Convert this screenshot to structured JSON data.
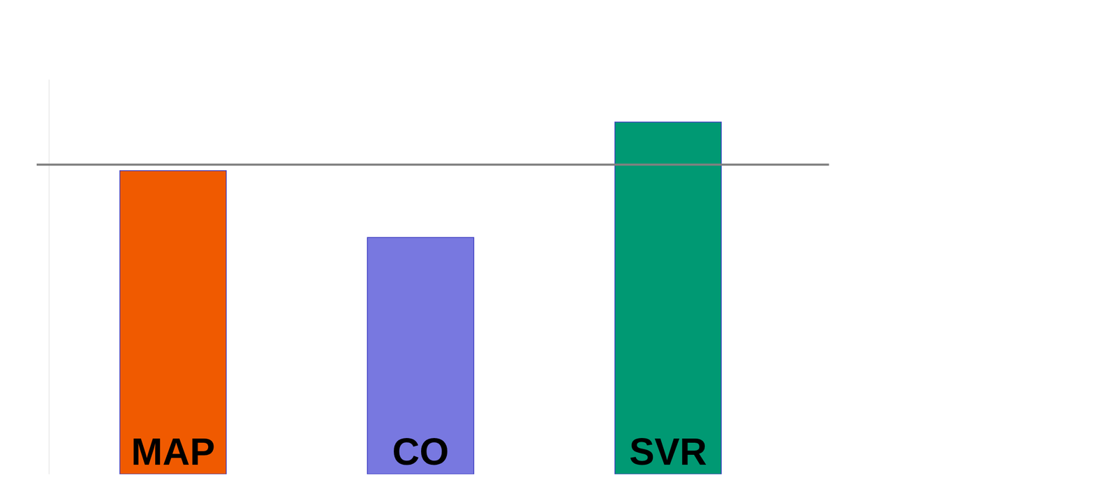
{
  "chart_data": {
    "type": "bar",
    "categories": [
      "MAP",
      "CO",
      "SVR"
    ],
    "values": [
      100,
      78,
      116
    ],
    "colors": [
      "#f05a00",
      "#7878e0",
      "#009973"
    ],
    "reference_line": 102,
    "ylim": [
      0,
      130
    ],
    "yticks": [],
    "tick_labels": false,
    "data_labels": true,
    "grid": false
  }
}
